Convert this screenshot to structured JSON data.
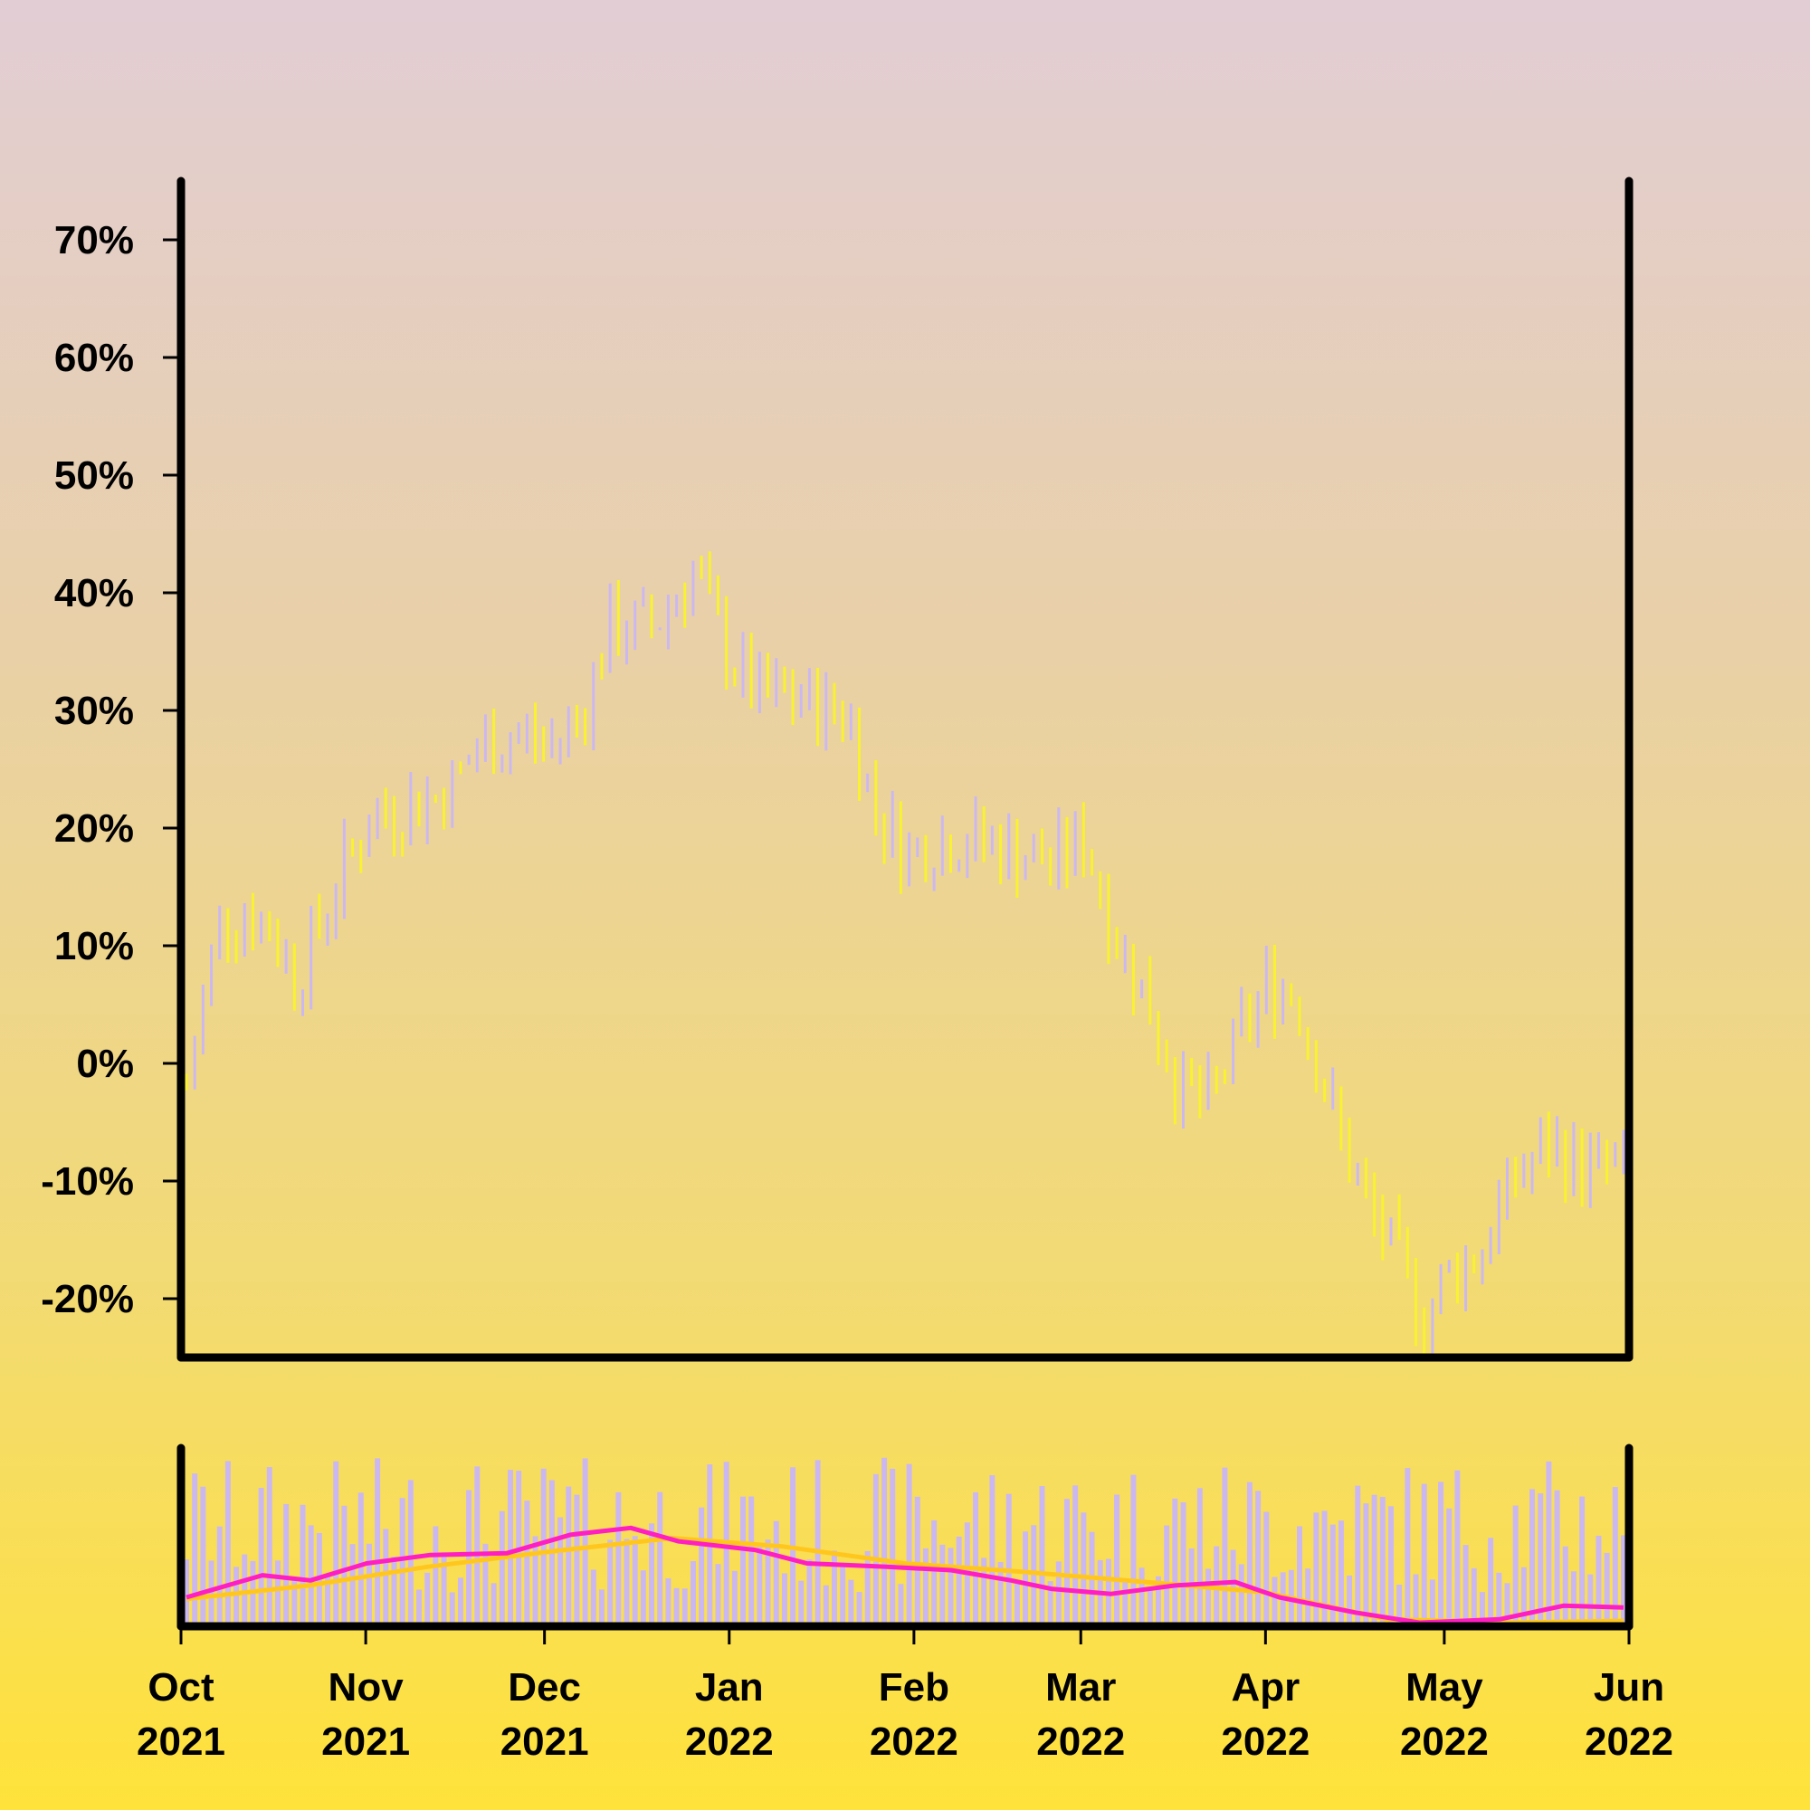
{
  "chart_data": {
    "type": "ohlc",
    "title": "",
    "xlabel": "",
    "ylabel": "",
    "ylim": [
      -0.25,
      0.75
    ],
    "xlim": [
      "2021-10-01",
      "2022-06-01"
    ],
    "y_ticks": [
      {
        "value": -0.2,
        "label": "-20%"
      },
      {
        "value": -0.1,
        "label": "-10%"
      },
      {
        "value": 0.0,
        "label": "0%"
      },
      {
        "value": 0.1,
        "label": "10%"
      },
      {
        "value": 0.2,
        "label": "20%"
      },
      {
        "value": 0.3,
        "label": "30%"
      },
      {
        "value": 0.4,
        "label": "40%"
      },
      {
        "value": 0.5,
        "label": "50%"
      },
      {
        "value": 0.6,
        "label": "60%"
      },
      {
        "value": 0.7,
        "label": "70%"
      }
    ],
    "x_ticks": [
      {
        "date": "2021-10-01",
        "month": "Oct",
        "year": "2021"
      },
      {
        "date": "2021-11-01",
        "month": "Nov",
        "year": "2021"
      },
      {
        "date": "2021-12-01",
        "month": "Dec",
        "year": "2021"
      },
      {
        "date": "2022-01-01",
        "month": "Jan",
        "year": "2022"
      },
      {
        "date": "2022-02-01",
        "month": "Feb",
        "year": "2022"
      },
      {
        "date": "2022-03-01",
        "month": "Mar",
        "year": "2022"
      },
      {
        "date": "2022-04-01",
        "month": "Apr",
        "year": "2022"
      },
      {
        "date": "2022-05-01",
        "month": "May",
        "year": "2022"
      },
      {
        "date": "2022-06-01",
        "month": "Jun",
        "year": "2022"
      }
    ],
    "colors": {
      "up": "#ccb8f0",
      "down": "#f8f232",
      "volume": "#ccb8f0",
      "volume_ma_fast": "#ff1ec2",
      "volume_ma_slow": "#ffc71e",
      "axis": "#000000"
    },
    "price_path": [
      {
        "date": "2021-10-01",
        "value": -0.02
      },
      {
        "date": "2021-10-04",
        "value": 0.05
      },
      {
        "date": "2021-10-07",
        "value": 0.12
      },
      {
        "date": "2021-10-12",
        "value": 0.13
      },
      {
        "date": "2021-10-18",
        "value": 0.11
      },
      {
        "date": "2021-10-22",
        "value": 0.07
      },
      {
        "date": "2021-10-28",
        "value": 0.14
      },
      {
        "date": "2021-11-05",
        "value": 0.21
      },
      {
        "date": "2021-11-12",
        "value": 0.22
      },
      {
        "date": "2021-11-19",
        "value": 0.23
      },
      {
        "date": "2021-11-26",
        "value": 0.27
      },
      {
        "date": "2021-12-03",
        "value": 0.28
      },
      {
        "date": "2021-12-09",
        "value": 0.27
      },
      {
        "date": "2021-12-15",
        "value": 0.3
      },
      {
        "date": "2021-12-20",
        "value": 0.37
      },
      {
        "date": "2021-12-28",
        "value": 0.37
      },
      {
        "date": "2022-01-05",
        "value": 0.42
      },
      {
        "date": "2022-01-10",
        "value": 0.36
      },
      {
        "date": "2022-01-17",
        "value": 0.31
      },
      {
        "date": "2022-01-24",
        "value": 0.31
      },
      {
        "date": "2022-01-31",
        "value": 0.3
      },
      {
        "date": "2022-02-03",
        "value": 0.3
      },
      {
        "date": "2022-02-08",
        "value": 0.22
      },
      {
        "date": "2022-02-14",
        "value": 0.18
      },
      {
        "date": "2022-02-21",
        "value": 0.19
      },
      {
        "date": "2022-02-28",
        "value": 0.19
      },
      {
        "date": "2022-03-07",
        "value": 0.18
      },
      {
        "date": "2022-03-14",
        "value": 0.17
      },
      {
        "date": "2022-03-20",
        "value": 0.19
      },
      {
        "date": "2022-03-25",
        "value": 0.12
      },
      {
        "date": "2022-04-01",
        "value": 0.05
      },
      {
        "date": "2022-04-07",
        "value": -0.02
      },
      {
        "date": "2022-04-12",
        "value": -0.04
      },
      {
        "date": "2022-04-18",
        "value": 0.02
      },
      {
        "date": "2022-04-24",
        "value": 0.07
      },
      {
        "date": "2022-04-29",
        "value": 0.06
      },
      {
        "date": "2022-05-05",
        "value": -0.03
      },
      {
        "date": "2022-05-11",
        "value": -0.11
      },
      {
        "date": "2022-05-17",
        "value": -0.16
      },
      {
        "date": "2022-05-24",
        "value": -0.22
      },
      {
        "date": "2022-05-27",
        "value": -0.18
      },
      {
        "date": "2022-06-03",
        "value": -0.16
      },
      {
        "date": "2022-06-09",
        "value": -0.1
      },
      {
        "date": "2022-06-16",
        "value": -0.07
      },
      {
        "date": "2022-06-23",
        "value": -0.09
      },
      {
        "date": "2022-06-30",
        "value": -0.09
      }
    ],
    "volume_ma_fast": [
      {
        "date": "2021-10-01",
        "value": 0.15
      },
      {
        "date": "2021-10-20",
        "value": 0.28
      },
      {
        "date": "2021-11-01",
        "value": 0.25
      },
      {
        "date": "2021-11-15",
        "value": 0.35
      },
      {
        "date": "2021-12-01",
        "value": 0.4
      },
      {
        "date": "2021-12-20",
        "value": 0.41
      },
      {
        "date": "2022-01-05",
        "value": 0.52
      },
      {
        "date": "2022-01-20",
        "value": 0.56
      },
      {
        "date": "2022-02-01",
        "value": 0.48
      },
      {
        "date": "2022-02-20",
        "value": 0.43
      },
      {
        "date": "2022-03-05",
        "value": 0.35
      },
      {
        "date": "2022-03-25",
        "value": 0.33
      },
      {
        "date": "2022-04-10",
        "value": 0.31
      },
      {
        "date": "2022-04-25",
        "value": 0.25
      },
      {
        "date": "2022-05-05",
        "value": 0.2
      },
      {
        "date": "2022-05-20",
        "value": 0.17
      },
      {
        "date": "2022-06-05",
        "value": 0.22
      },
      {
        "date": "2022-06-20",
        "value": 0.24
      },
      {
        "date": "2022-07-01",
        "value": 0.15
      },
      {
        "date": "2022-07-20",
        "value": 0.06
      },
      {
        "date": "2022-08-05",
        "value": 0.0
      },
      {
        "date": "2022-08-25",
        "value": 0.02
      },
      {
        "date": "2022-09-10",
        "value": 0.1
      },
      {
        "date": "2022-09-25",
        "value": 0.09
      }
    ],
    "volume_ma_slow": [
      {
        "date": "2021-10-01",
        "value": 0.14
      },
      {
        "date": "2021-11-01",
        "value": 0.22
      },
      {
        "date": "2021-12-01",
        "value": 0.33
      },
      {
        "date": "2022-01-01",
        "value": 0.42
      },
      {
        "date": "2022-02-01",
        "value": 0.5
      },
      {
        "date": "2022-03-01",
        "value": 0.45
      },
      {
        "date": "2022-04-01",
        "value": 0.35
      },
      {
        "date": "2022-05-01",
        "value": 0.3
      },
      {
        "date": "2022-06-01",
        "value": 0.24
      },
      {
        "date": "2022-07-01",
        "value": 0.18
      },
      {
        "date": "2022-08-01",
        "value": 0.02
      },
      {
        "date": "2022-09-01",
        "value": 0.0
      },
      {
        "date": "2022-09-30",
        "value": 0.01
      }
    ]
  }
}
